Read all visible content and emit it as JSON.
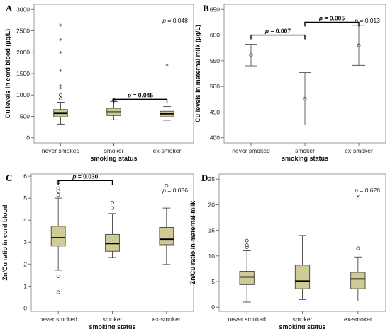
{
  "chart_data": [
    {
      "panel": "A",
      "type": "boxplot",
      "xlabel": "smoking status",
      "ylabel": "Cu levels in cord blood (µg/L)",
      "categories": [
        "never smoked",
        "smoker",
        "ex-smoker"
      ],
      "ylim": [
        -120,
        3120
      ],
      "yticks": [
        0,
        500,
        1000,
        1500,
        2000,
        2500,
        3000
      ],
      "boxes": [
        {
          "whisker_low": 320,
          "q1": 490,
          "median": 570,
          "q3": 660,
          "whisker_high": 830,
          "outliers": [
            {
              "value": 920,
              "marker": "circle"
            },
            {
              "value": 1000,
              "marker": "circle"
            },
            {
              "value": 1150,
              "marker": "star"
            },
            {
              "value": 1200,
              "marker": "star"
            },
            {
              "value": 1550,
              "marker": "star"
            },
            {
              "value": 1980,
              "marker": "star"
            },
            {
              "value": 2280,
              "marker": "star"
            },
            {
              "value": 2620,
              "marker": "star"
            }
          ]
        },
        {
          "whisker_low": 420,
          "q1": 520,
          "median": 600,
          "q3": 690,
          "whisker_high": 850,
          "outliers": [
            {
              "value": 880,
              "marker": "circle"
            }
          ]
        },
        {
          "whisker_low": 410,
          "q1": 490,
          "median": 560,
          "q3": 620,
          "whisker_high": 730,
          "outliers": [
            {
              "value": 1680,
              "marker": "star"
            }
          ]
        }
      ],
      "overall_p": "= 0.048",
      "comparisons": [
        {
          "from": 1,
          "to": 2,
          "label": "= 0.045",
          "y": 900
        }
      ]
    },
    {
      "panel": "B",
      "type": "errorbar",
      "xlabel": "smoking status",
      "ylabel": "Cu levels in maternal milk (µg/L)",
      "categories": [
        "never smoked",
        "smoker",
        "ex-smoker"
      ],
      "ylim": [
        390,
        660
      ],
      "yticks": [
        400,
        450,
        500,
        550,
        600,
        650
      ],
      "points": [
        {
          "mean": 561,
          "low": 540,
          "high": 582
        },
        {
          "mean": 476,
          "low": 425,
          "high": 527
        },
        {
          "mean": 580,
          "low": 541,
          "high": 619
        }
      ],
      "overall_p": "= 0.013",
      "comparisons": [
        {
          "from": 0,
          "to": 1,
          "label": "= 0.007",
          "y": 600
        },
        {
          "from": 1,
          "to": 2,
          "label": "= 0.005",
          "y": 625
        }
      ]
    },
    {
      "panel": "C",
      "type": "boxplot",
      "xlabel": "smoking status",
      "ylabel": "Zn/Cu ratio in cord blood",
      "categories": [
        "never smoked",
        "smoker",
        "ex-smoker"
      ],
      "ylim": [
        -0.15,
        6.1
      ],
      "yticks": [
        0,
        1,
        2,
        3,
        4,
        5,
        6
      ],
      "boxes": [
        {
          "whisker_low": 1.72,
          "q1": 2.82,
          "median": 3.2,
          "q3": 3.72,
          "whisker_high": 5.0,
          "outliers": [
            {
              "value": 0.72,
              "marker": "circle"
            },
            {
              "value": 1.45,
              "marker": "circle"
            },
            {
              "value": 5.15,
              "marker": "circle"
            },
            {
              "value": 5.32,
              "marker": "circle"
            },
            {
              "value": 5.45,
              "marker": "circle"
            },
            {
              "value": 5.72,
              "marker": "circle"
            }
          ]
        },
        {
          "whisker_low": 2.3,
          "q1": 2.58,
          "median": 2.93,
          "q3": 3.35,
          "whisker_high": 4.3,
          "outliers": [
            {
              "value": 4.55,
              "marker": "circle"
            },
            {
              "value": 4.8,
              "marker": "circle"
            }
          ]
        },
        {
          "whisker_low": 1.98,
          "q1": 2.88,
          "median": 3.13,
          "q3": 3.67,
          "whisker_high": 4.55,
          "outliers": [
            {
              "value": 5.57,
              "marker": "circle"
            }
          ]
        }
      ],
      "overall_p": "= 0.036",
      "comparisons": [
        {
          "from": 0,
          "to": 1,
          "label": "= 0.030",
          "y": 5.8
        }
      ]
    },
    {
      "panel": "D",
      "type": "boxplot",
      "xlabel": "smoking status",
      "ylabel": "Zn/Cu ratio in maternal milk",
      "categories": [
        "never smoked",
        "smoker",
        "ex-smoker"
      ],
      "ylim": [
        -0.8,
        26
      ],
      "yticks": [
        0,
        5,
        10,
        15,
        20,
        25
      ],
      "boxes": [
        {
          "whisker_low": 1.0,
          "q1": 4.4,
          "median": 5.9,
          "q3": 7.0,
          "whisker_high": 11.0,
          "outliers": [
            {
              "value": 11.7,
              "marker": "circle"
            },
            {
              "value": 12.1,
              "marker": "circle"
            },
            {
              "value": 13.0,
              "marker": "circle"
            }
          ]
        },
        {
          "whisker_low": 1.5,
          "q1": 3.6,
          "median": 5.1,
          "q3": 8.2,
          "whisker_high": 14.0,
          "outliers": []
        },
        {
          "whisker_low": 1.2,
          "q1": 3.6,
          "median": 5.5,
          "q3": 6.8,
          "whisker_high": 9.8,
          "outliers": [
            {
              "value": 11.5,
              "marker": "circle"
            },
            {
              "value": 21.5,
              "marker": "star"
            }
          ]
        }
      ],
      "overall_p": "= 0.628",
      "comparisons": []
    }
  ],
  "style": {
    "box_fill": "#cfca96",
    "box_stroke": "#444444",
    "plot_border": "#9a9a9a",
    "background": "#ffffff"
  }
}
